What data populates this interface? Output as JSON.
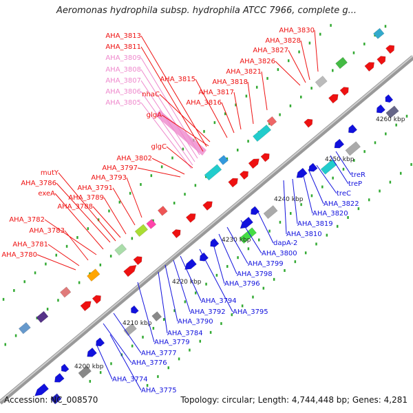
{
  "title": "Aeromonas hydrophila subsp. hydrophila ATCC 7966, complete g...",
  "footer": {
    "accession": "Accession: NC_008570",
    "summary": "Topology: circular; Length: 4,744,448 bp; Genes: 4,281"
  },
  "colors": {
    "forward": "#ee1111",
    "reverse": "#1111dd",
    "faded": "#ee88cc",
    "backbone": "#999999"
  },
  "kbp_marks": [
    "4200 kbp",
    "4210 kbp",
    "4220 kbp",
    "4230 kbp",
    "4240 kbp",
    "4250 kbp",
    "4260 kbp"
  ],
  "top_labels": [
    "AHA_3813",
    "AHA_3811",
    "AHA_3809",
    "AHA_3808",
    "AHA_3807",
    "AHA_3806",
    "AHA_3805",
    "nhaC",
    "glgA",
    "AHA_3815",
    "AHA_3817",
    "AHA_3816",
    "AHA_3818",
    "AHA_3821",
    "AHA_3826",
    "AHA_3827",
    "AHA_3828",
    "AHA_3830",
    "glgC",
    "AHA_3802",
    "AHA_3797",
    "AHA_3793",
    "AHA_3791",
    "AHA_3789",
    "AHA_3788",
    "mutY",
    "AHA_3786",
    "exeA",
    "AHA_3782",
    "AHA_3783",
    "AHA_3781",
    "AHA_3780"
  ],
  "bottom_labels": [
    "treR",
    "treP",
    "treC",
    "AHA_3822",
    "AHA_3820",
    "AHA_3819",
    "AHA_3810",
    "dapA-2",
    "AHA_3800",
    "AHA_3799",
    "AHA_3798",
    "AHA_3796",
    "AHA_3794",
    "AHA_3795",
    "AHA_3792",
    "AHA_3790",
    "AHA_3784",
    "AHA_3779",
    "AHA_3777",
    "AHA_3776",
    "AHA_3774",
    "AHA_3775"
  ]
}
